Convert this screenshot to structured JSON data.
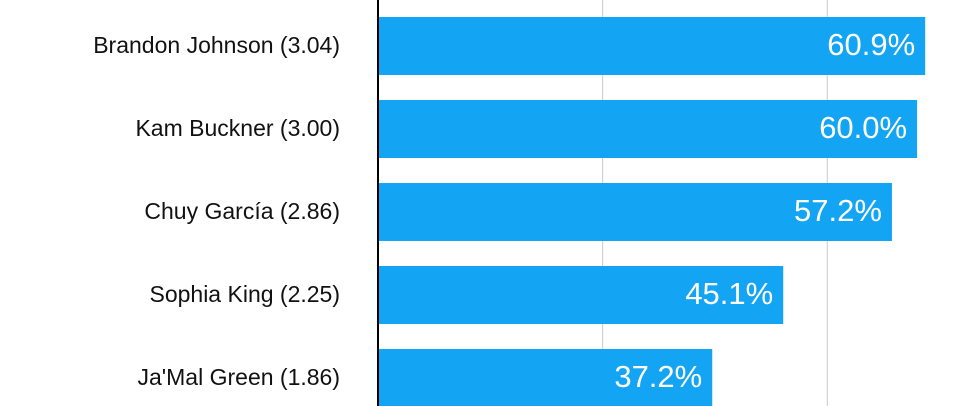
{
  "chart_data": {
    "type": "hbar",
    "categories": [
      "Brandon Johnson (3.04)",
      "Kam Buckner (3.00)",
      "Chuy García (2.86)",
      "Sophia King (2.25)",
      "Ja'Mal Green (1.86)"
    ],
    "values": [
      60.9,
      60.0,
      57.2,
      45.1,
      37.2
    ],
    "value_labels": [
      "60.9%",
      "60.0%",
      "57.2%",
      "45.1%",
      "37.2%"
    ],
    "color": "#14a4f4",
    "xlim": [
      0,
      67
    ],
    "gridlines": [
      25,
      50
    ]
  }
}
